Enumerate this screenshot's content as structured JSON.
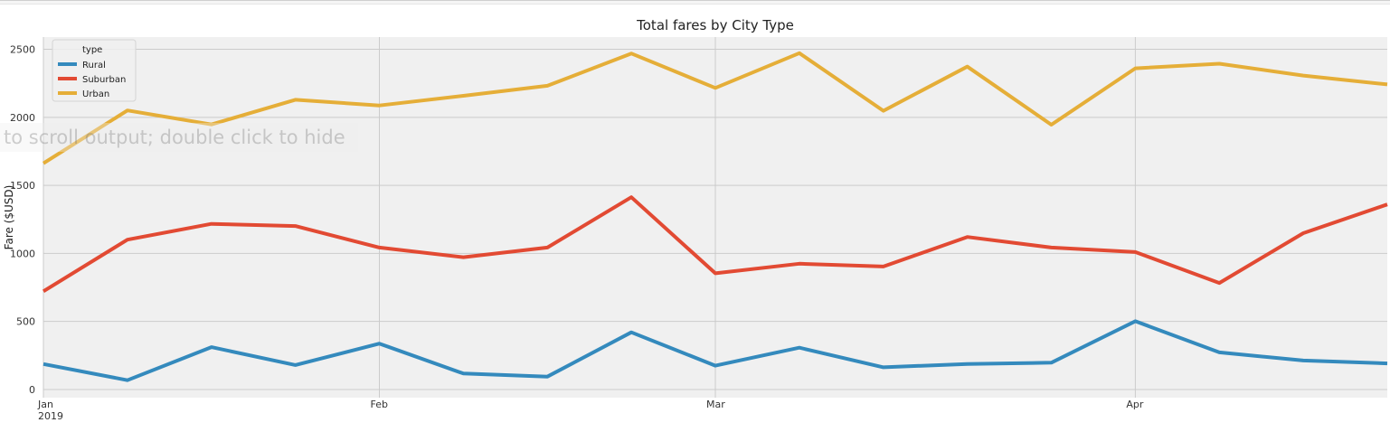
{
  "tooltip": {
    "text": "to scroll output; double click to hide"
  },
  "chart_data": {
    "type": "line",
    "title": "Total fares by City Type",
    "xlabel": "",
    "ylabel": "Fare ($USD)",
    "ylim": [
      -60,
      2590
    ],
    "y_ticks": [
      0,
      500,
      1000,
      1500,
      2000,
      2500
    ],
    "x_ticks": [
      {
        "week": 0,
        "label": "Jan",
        "sublabel": "2019"
      },
      {
        "week": 4,
        "label": "Feb",
        "sublabel": ""
      },
      {
        "week": 8,
        "label": "Mar",
        "sublabel": ""
      },
      {
        "week": 13,
        "label": "Apr",
        "sublabel": ""
      }
    ],
    "x": [
      0,
      1,
      2,
      3,
      4,
      5,
      6,
      7,
      8,
      9,
      10,
      11,
      12,
      13,
      14,
      15,
      16
    ],
    "grid": true,
    "legend": {
      "title": "type",
      "position": "top-left"
    },
    "series": [
      {
        "name": "Rural",
        "color": "#348ABD",
        "values": [
          187,
          68,
          311,
          180,
          337,
          117,
          95,
          420,
          175,
          307,
          163,
          188,
          197,
          502,
          273,
          213,
          192
        ]
      },
      {
        "name": "Suburban",
        "color": "#E24A33",
        "values": [
          722,
          1101,
          1217,
          1201,
          1043,
          972,
          1043,
          1413,
          854,
          924,
          904,
          1121,
          1043,
          1010,
          783,
          1149,
          1360
        ]
      },
      {
        "name": "Urban",
        "color": "#E5AE38",
        "values": [
          1662,
          2051,
          1948,
          2129,
          2087,
          2158,
          2232,
          2469,
          2216,
          2472,
          2048,
          2373,
          1946,
          2360,
          2394,
          2307,
          2242
        ]
      }
    ]
  }
}
